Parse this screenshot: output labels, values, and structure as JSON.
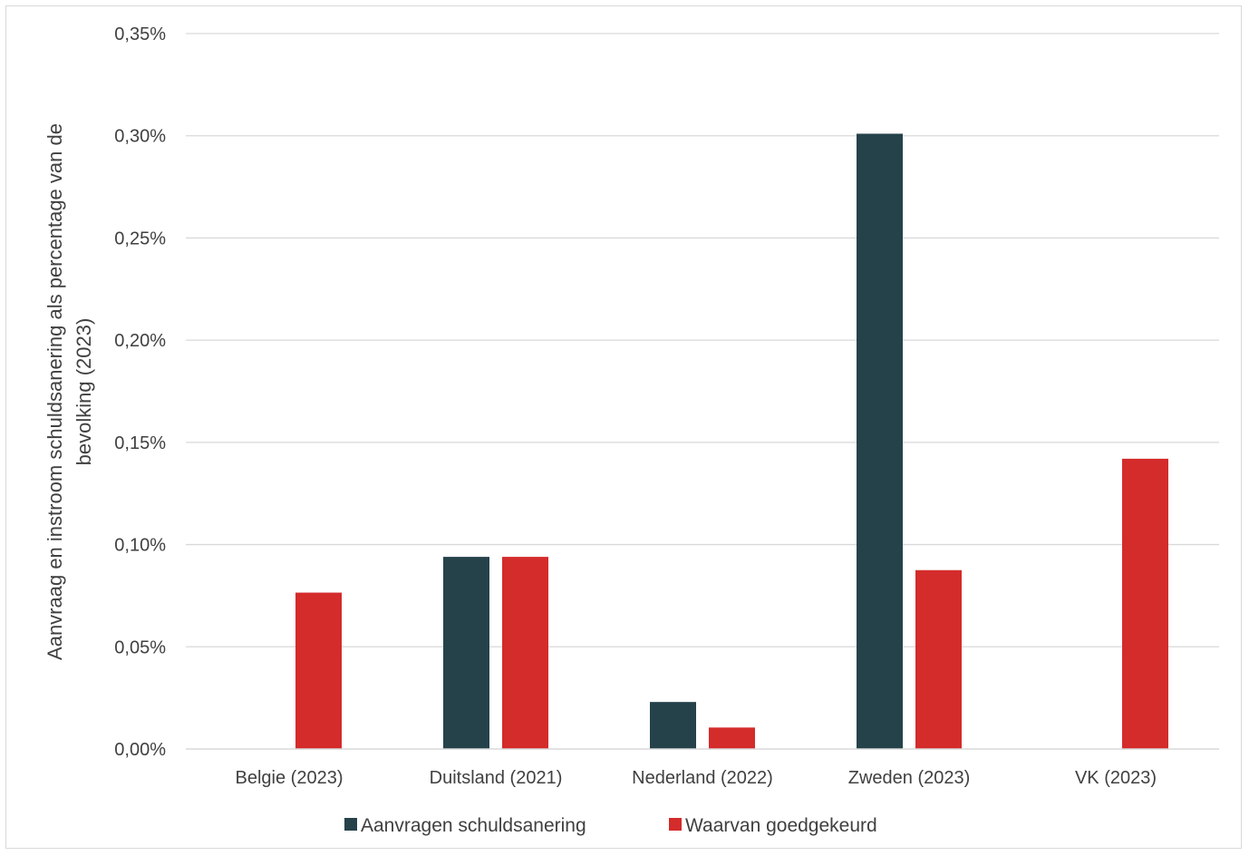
{
  "chart_data": {
    "type": "bar",
    "title": "",
    "ylabel_lines": [
      "Aanvraag en instroom schuldsanering als percentage van de",
      "bevolking  (2023)"
    ],
    "xlabel": "",
    "categories": [
      "Belgie (2023)",
      "Duitsland (2021)",
      "Nederland (2022)",
      "Zweden (2023)",
      "VK (2023)"
    ],
    "series": [
      {
        "name": "Aanvragen schuldsanering",
        "color": "#25424a",
        "values": [
          null,
          0.094,
          0.023,
          0.301,
          null
        ]
      },
      {
        "name": "Waarvan goedgekeurd",
        "color": "#d42b2b",
        "values": [
          0.0765,
          0.094,
          0.0105,
          0.0875,
          0.142
        ]
      }
    ],
    "ylim": [
      0,
      0.35
    ],
    "yticks": [
      0,
      0.05,
      0.1,
      0.15,
      0.2,
      0.25,
      0.3,
      0.35
    ],
    "ytick_labels": [
      "0,00%",
      "0,05%",
      "0,10%",
      "0,15%",
      "0,20%",
      "0,25%",
      "0,30%",
      "0,35%"
    ],
    "grid": true,
    "legend_position": "bottom-center"
  }
}
